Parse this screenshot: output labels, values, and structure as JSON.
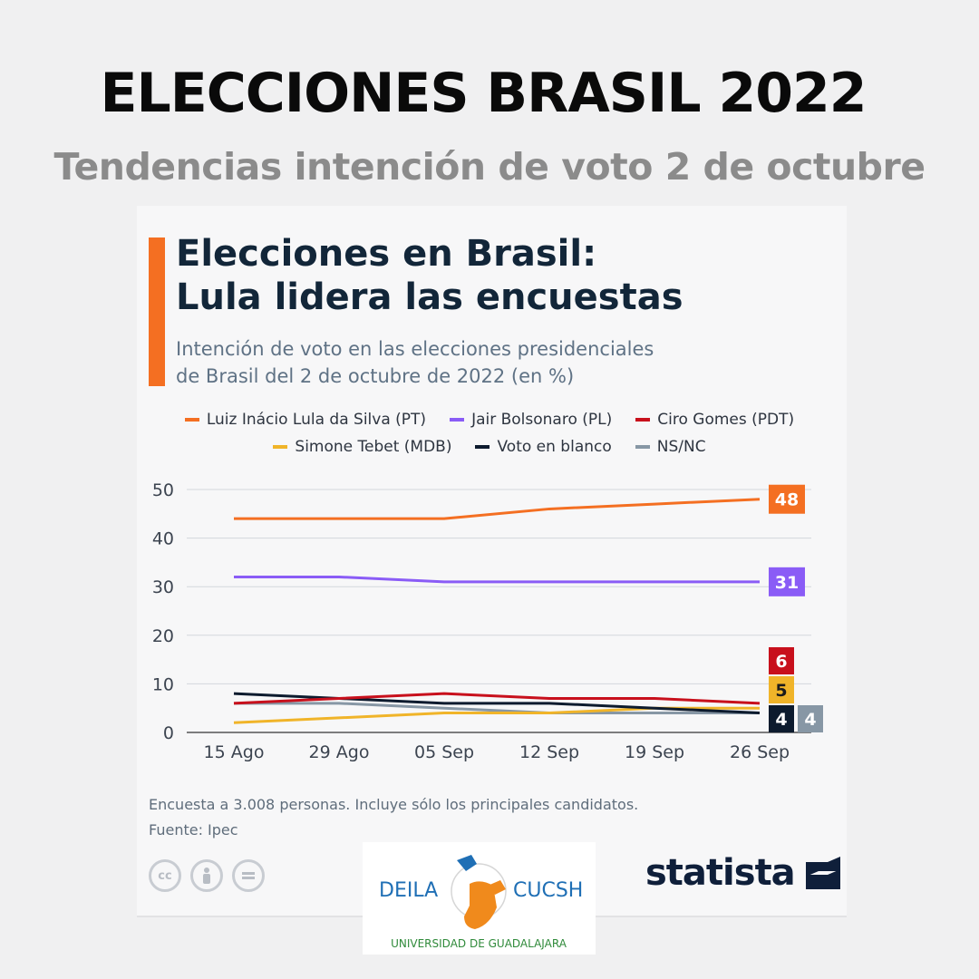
{
  "header": {
    "title": "ELECCIONES BRASIL 2022",
    "subtitle": "Tendencias intención de voto 2 de octubre"
  },
  "colors": {
    "lula": "#f46f22",
    "bolsonaro": "#8a5cf6",
    "ciro": "#c8101c",
    "tebet": "#f0b429",
    "blanco": "#0d1b2e",
    "nsnc": "#8797a5",
    "accent": "#f46f22",
    "title": "#122639"
  },
  "card": {
    "footnote_line1": "Encuesta a 3.008 personas. Incluye sólo los principales candidatos.",
    "footnote_line2": "Fuente: Ipec",
    "cc_icons": [
      "cc-icon",
      "person-icon",
      "equals-icon"
    ],
    "brand": "statista"
  },
  "logo": {
    "left_text": "DEILA",
    "right_text": "CUCSH",
    "bottom_text": "UNIVERSIDAD DE GUADALAJARA",
    "icon": "hand-icon"
  },
  "chart_data": {
    "type": "line",
    "title": "Elecciones en Brasil:\nLula lidera las encuestas",
    "title_line1": "Elecciones en Brasil:",
    "title_line2": "Lula lidera las encuestas",
    "subtitle": "Intención de voto en las elecciones presidenciales\nde Brasil del 2 de octubre de 2022 (en %)",
    "subtitle_line1": "Intención de voto en las elecciones presidenciales",
    "subtitle_line2": "de Brasil del 2 de octubre de 2022 (en %)",
    "xlabel": "",
    "ylabel": "",
    "x": [
      "15 Ago",
      "29 Ago",
      "05 Sep",
      "12 Sep",
      "19 Sep",
      "26 Sep"
    ],
    "ylim": [
      0,
      50
    ],
    "yticks": [
      0,
      10,
      20,
      30,
      40,
      50
    ],
    "grid": true,
    "legend_position": "top",
    "series": [
      {
        "name": "Luiz Inácio Lula da Silva (PT)",
        "key": "lula",
        "values": [
          44,
          44,
          44,
          46,
          47,
          48
        ],
        "end_label": "48"
      },
      {
        "name": "Jair Bolsonaro (PL)",
        "key": "bolsonaro",
        "values": [
          32,
          32,
          31,
          31,
          31,
          31
        ],
        "end_label": "31"
      },
      {
        "name": "Ciro Gomes (PDT)",
        "key": "ciro",
        "values": [
          6,
          7,
          8,
          7,
          7,
          6
        ],
        "end_label": "6"
      },
      {
        "name": "Simone Tebet (MDB)",
        "key": "tebet",
        "values": [
          2,
          3,
          4,
          4,
          5,
          5
        ],
        "end_label": "5"
      },
      {
        "name": "Voto en blanco",
        "key": "blanco",
        "values": [
          8,
          7,
          6,
          6,
          5,
          4
        ],
        "end_label": "4"
      },
      {
        "name": "NS/NC",
        "key": "nsnc",
        "values": [
          6,
          6,
          5,
          4,
          4,
          4
        ],
        "end_label": "4"
      }
    ]
  }
}
